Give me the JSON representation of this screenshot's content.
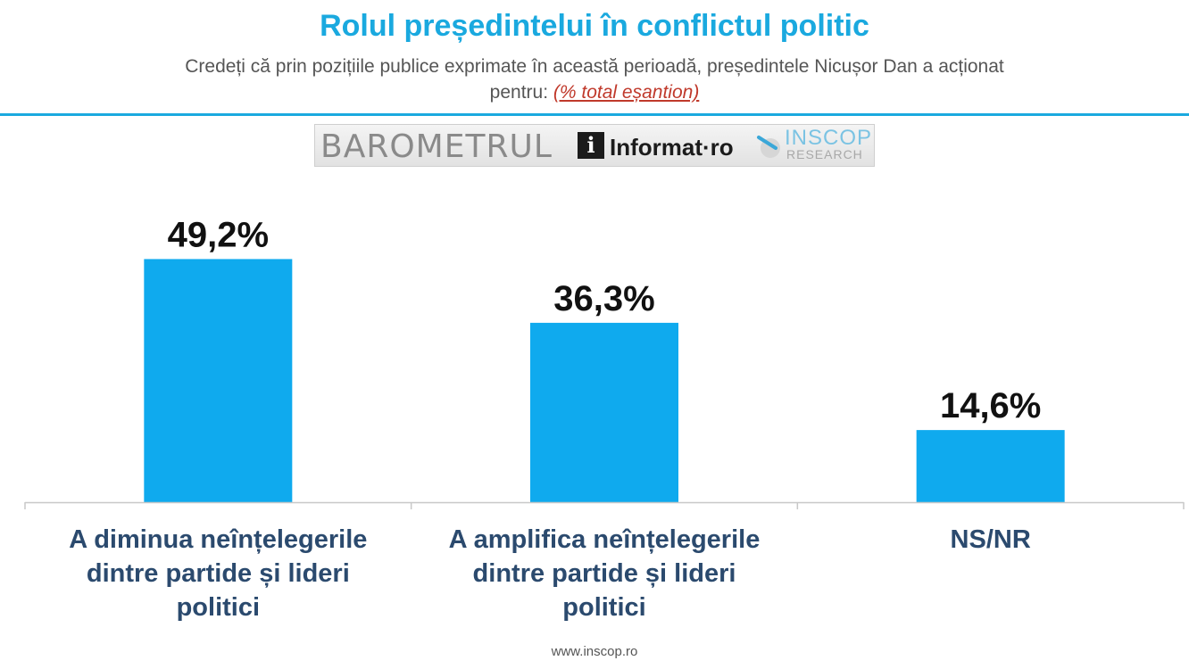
{
  "header": {
    "title": "Rolul președintelui în conflictul politic",
    "subtitle_line1": "Credeți că prin pozițiile publice exprimate în această perioadă, președintele Nicușor Dan a acționat",
    "subtitle_line2": "pentru: ",
    "subtitle_note": "(% total eșantion)"
  },
  "logo": {
    "barometer": "BAROMETRUL",
    "partner_letter": "i",
    "partner": "Informat·ro",
    "pollster": "INSCOP",
    "pollster_sub": "RESEARCH"
  },
  "footer": {
    "url": "www.inscop.ro"
  },
  "colors": {
    "accent": "#1aa9df",
    "bar": "#0faaee",
    "category_text": "#2b4a6e"
  },
  "chart_data": {
    "type": "bar",
    "categories": [
      [
        "A diminua neînțelegerile",
        "dintre partide și lideri",
        "politici"
      ],
      [
        "A amplifica neînțelegerile",
        "dintre partide și lideri",
        "politici"
      ],
      [
        "NS/NR"
      ]
    ],
    "values": [
      49.2,
      36.3,
      14.6
    ],
    "value_labels": [
      "49,2%",
      "36,3%",
      "14,6%"
    ],
    "ylim": [
      0,
      50
    ],
    "grid": false,
    "legend": "none"
  }
}
